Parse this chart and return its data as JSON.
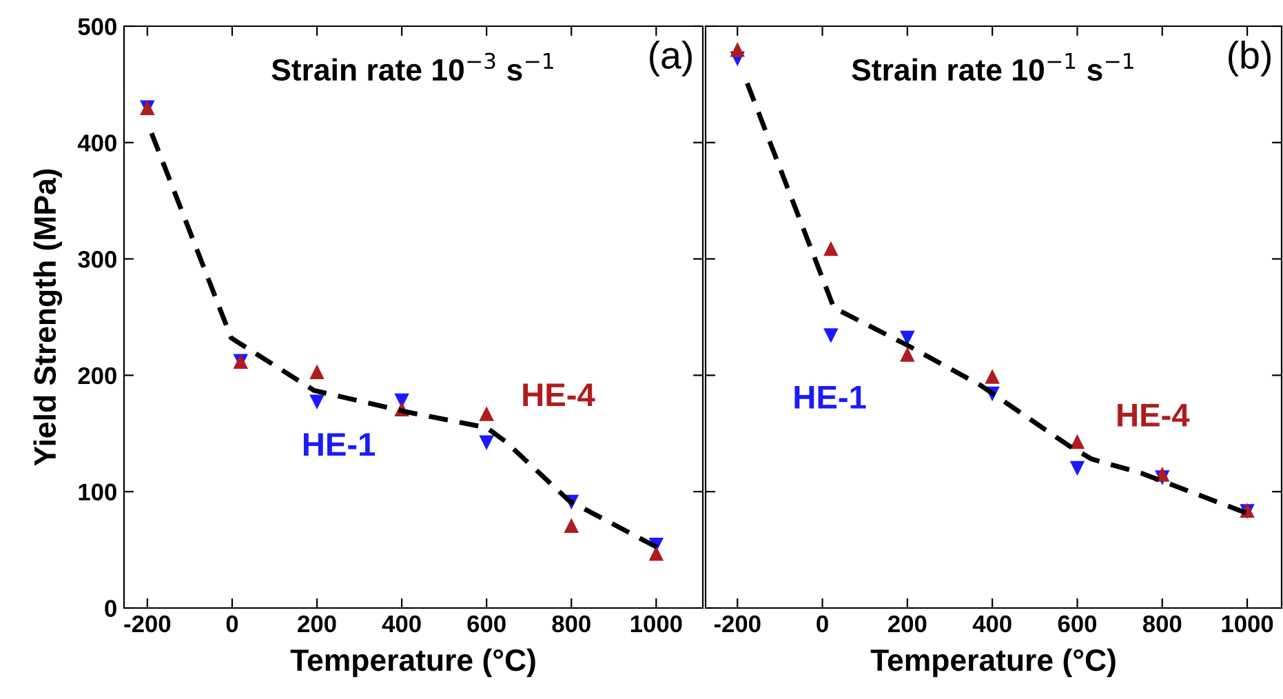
{
  "chart_data": [
    {
      "type": "scatter",
      "title": "Strain rate 10$^{−3}$ s$^{−1}$",
      "xlabel": "Temperature (°C)",
      "ylabel": "Yield Strength (MPa)",
      "annotations": [
        "(a)"
      ],
      "x": [
        -200,
        20,
        200,
        400,
        600,
        800,
        1000
      ],
      "series": [
        {
          "name": "HE-1",
          "color": "#1a1aff",
          "marker": "triangle_down",
          "values": [
            430,
            212,
            177,
            178,
            142,
            91,
            54
          ]
        },
        {
          "name": "HE-4",
          "color": "#b01c1c",
          "marker": "triangle",
          "values": [
            430,
            212,
            203,
            171,
            167,
            71,
            47
          ]
        },
        {
          "type": "line",
          "color": "#000000",
          "line_style": "dashed",
          "marker": "none",
          "x": [
            -190,
            -2,
            193,
            405,
            600,
            645,
            795,
            1003
          ],
          "values": [
            408,
            232,
            187,
            169,
            155,
            143,
            92,
            52
          ]
        }
      ],
      "xlim": [
        -255,
        1110
      ],
      "ylim": [
        0,
        500
      ],
      "xticks": [
        -200,
        0,
        200,
        400,
        600,
        800,
        1000
      ],
      "yticks": [
        0,
        100,
        200,
        300,
        400,
        500
      ],
      "grid": false,
      "legend": false
    },
    {
      "type": "scatter",
      "title": "Strain rate 10$^{−1}$ s$^{−1}$",
      "xlabel": "Temperature (°C)",
      "annotations": [
        "(b)"
      ],
      "x": [
        -200,
        20,
        200,
        400,
        600,
        800,
        1000
      ],
      "series": [
        {
          "name": "HE-1",
          "color": "#1a1aff",
          "marker": "triangle_down",
          "values": [
            472,
            234,
            232,
            184,
            120,
            112,
            83
          ]
        },
        {
          "name": "HE-4",
          "color": "#b01c1c",
          "marker": "triangle",
          "values": [
            480,
            309,
            218,
            199,
            143,
            115,
            84
          ]
        },
        {
          "type": "line",
          "color": "#000000",
          "line_style": "dashed",
          "marker": "none",
          "x": [
            -177,
            27,
            199,
            374,
            578,
            634,
            750,
            1010
          ],
          "values": [
            451,
            258,
            226,
            191,
            140,
            128,
            116,
            80
          ]
        }
      ],
      "xlim": [
        -275,
        1081
      ],
      "ylim": [
        0,
        500
      ],
      "xticks": [
        -200,
        0,
        200,
        400,
        600,
        800,
        1000
      ],
      "yticks": [
        0,
        100,
        200,
        300,
        400,
        500
      ],
      "tick_labels": "x",
      "grid": false,
      "legend": false
    }
  ]
}
